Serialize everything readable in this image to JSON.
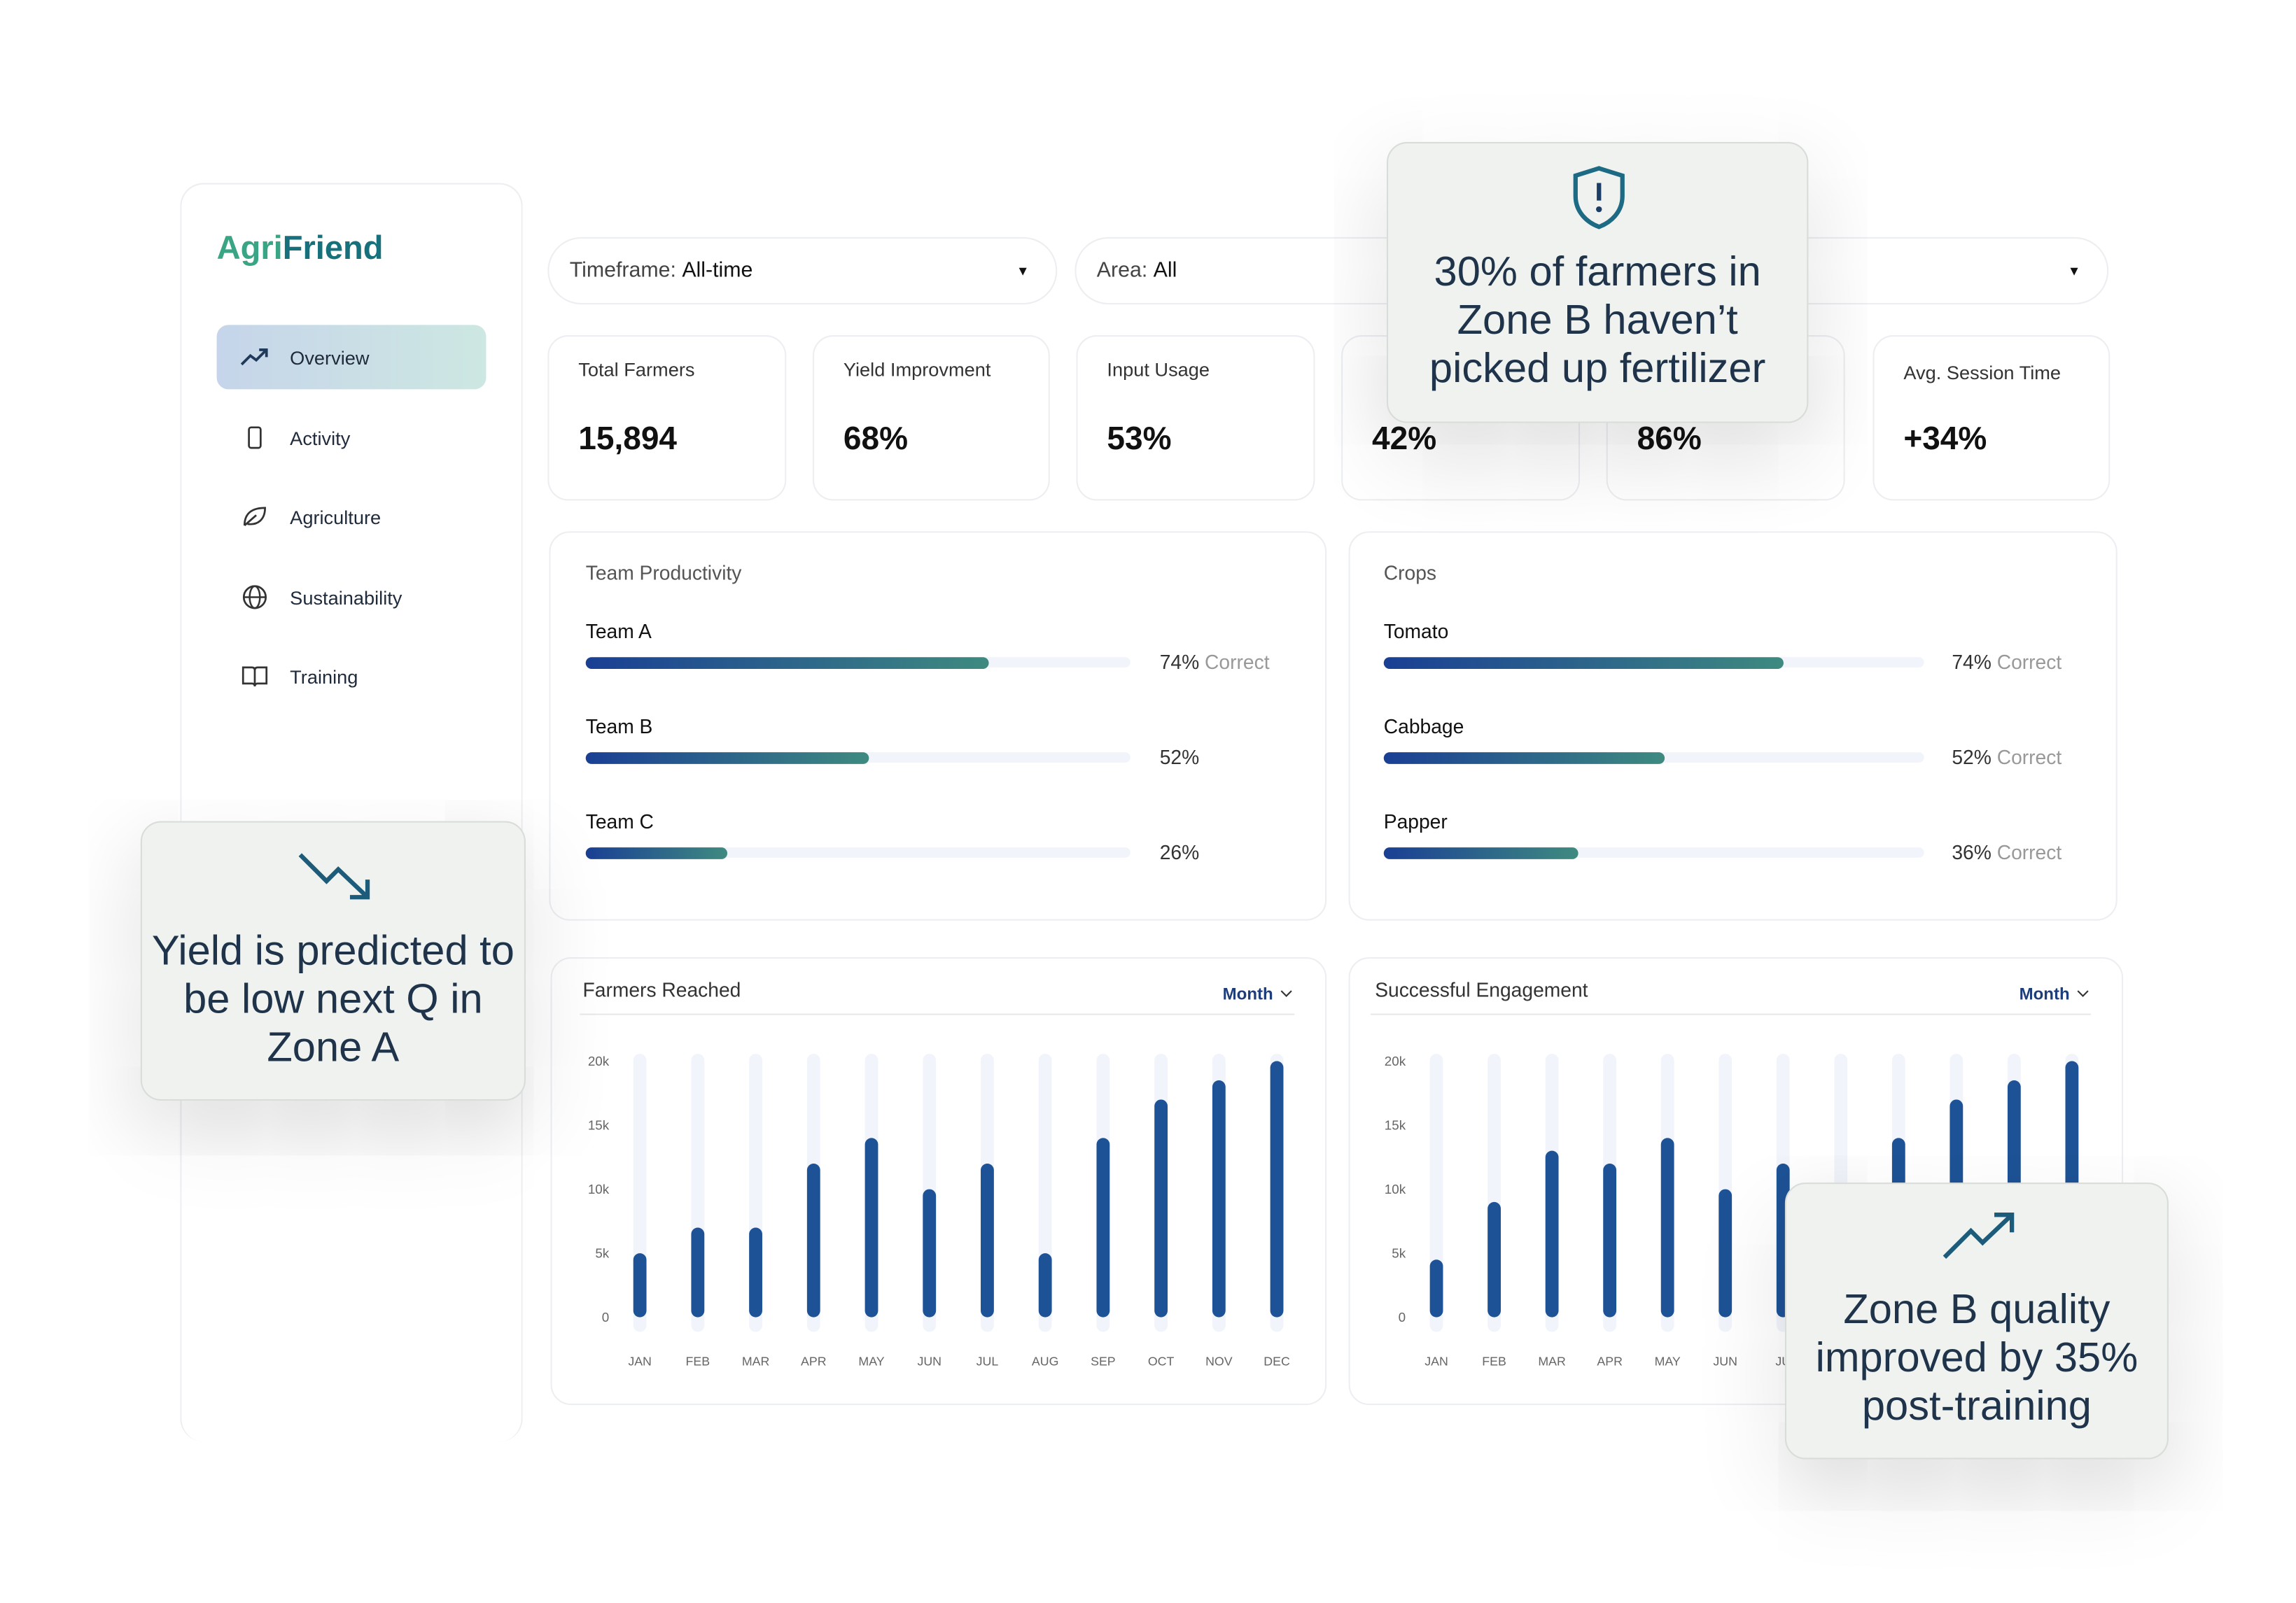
{
  "brand": {
    "part1": "Agri",
    "part2": "Friend"
  },
  "nav": [
    "Overview",
    "Activity",
    "Agriculture",
    "Sustainability",
    "Training"
  ],
  "filters": [
    {
      "label": "Timeframe:",
      "value": "All-time"
    },
    {
      "label": "Area:",
      "value": "All"
    }
  ],
  "kpis": [
    {
      "label": "Total Farmers",
      "value": "15,894"
    },
    {
      "label": "Yield Improvment",
      "value": "68%"
    },
    {
      "label": "Input Usage",
      "value": "53%"
    },
    {
      "value": "42%"
    },
    {
      "value": "86%"
    },
    {
      "label": "Avg. Session Time",
      "value": "+34%"
    }
  ],
  "panels": [
    {
      "title": "Team Productivity",
      "xlim": [
        0,
        100
      ],
      "items": [
        {
          "name": "Team A",
          "value": 74,
          "value_label": "74%",
          "suffix": "Correct"
        },
        {
          "name": "Team B",
          "value": 52,
          "value_label": "52%"
        },
        {
          "name": "Team C",
          "value": 26,
          "value_label": "26%"
        }
      ]
    },
    {
      "title": "Crops",
      "xlim": [
        0,
        100
      ],
      "items": [
        {
          "name": "Tomato",
          "value": 74,
          "value_label": "74%",
          "suffix": "Correct"
        },
        {
          "name": "Cabbage",
          "value": 52,
          "value_label": "52%",
          "suffix": "Correct"
        },
        {
          "name": "Papper",
          "value": 36,
          "value_label": "36%",
          "suffix": "Correct"
        }
      ]
    }
  ],
  "chart_data": [
    {
      "type": "bar",
      "title": "Farmers Reached",
      "period": "Month",
      "color": "#1d5296",
      "categories": [
        "JAN",
        "FEB",
        "MAR",
        "APR",
        "MAY",
        "JUN",
        "JUL",
        "AUG",
        "SEP",
        "OCT",
        "NOV",
        "DEC"
      ],
      "values": [
        5000,
        7000,
        7000,
        12000,
        14000,
        10000,
        12000,
        5000,
        14000,
        17000,
        18500,
        20000
      ],
      "ylim": [
        0,
        20000
      ],
      "yticks": [
        0,
        {
          "value": 5000,
          "label": "5k"
        },
        {
          "value": 10000,
          "label": "10k"
        },
        {
          "value": 15000,
          "label": "15k"
        },
        {
          "value": 20000,
          "label": "20k"
        }
      ]
    },
    {
      "type": "bar",
      "title": "Successful Engagement",
      "period": "Month",
      "color": "#1d5296",
      "categories": [
        "JAN",
        "FEB",
        "MAR",
        "APR",
        "MAY",
        "JUN",
        "JU",
        null,
        null,
        null,
        null,
        null
      ],
      "values": [
        4500,
        9000,
        13000,
        12000,
        14000,
        10000,
        12000,
        null,
        14000,
        17000,
        18500,
        20000
      ],
      "ylim": [
        0,
        20000
      ],
      "yticks": [
        0,
        {
          "value": 5000,
          "label": "5k"
        },
        {
          "value": 10000,
          "label": "10k"
        },
        {
          "value": 15000,
          "label": "15k"
        },
        {
          "value": 20000,
          "label": "20k"
        }
      ]
    }
  ],
  "callouts": [
    "30% of farmers in Zone B haven’t picked up fertilizer",
    "Yield is predicted to be low next Q in Zone A",
    "Zone B quality improved by 35% post-training"
  ]
}
